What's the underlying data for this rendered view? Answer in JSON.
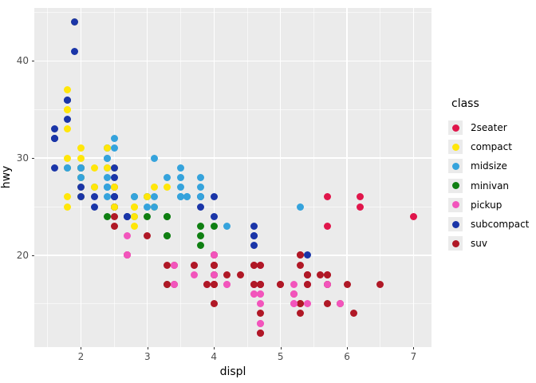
{
  "figure": {
    "x_axis_title": "displ",
    "y_axis_title": "hwy",
    "legend_title": "class"
  },
  "colors": {
    "panel_bg": "#EBEBEB",
    "grid": "#FFFFFF",
    "tick_label": "#4D4D4D",
    "axis_title": "#000000",
    "legend_key_bg": "#EBEBEB"
  },
  "chart_data": {
    "type": "scatter",
    "title": "",
    "xlabel": "displ",
    "ylabel": "hwy",
    "x_domain": [
      1.3,
      7.27
    ],
    "y_domain": [
      10.55,
      45.45
    ],
    "x_major_ticks": [
      2,
      3,
      4,
      5,
      6,
      7
    ],
    "x_minor_ticks": [
      1.5,
      2.5,
      3.5,
      4.5,
      5.5,
      6.5
    ],
    "y_major_ticks": [
      20,
      30,
      40
    ],
    "y_minor_ticks": [
      15,
      25,
      35,
      45
    ],
    "grid": true,
    "legend_position": "right",
    "classes": [
      {
        "name": "2seater",
        "color": "#E0164B"
      },
      {
        "name": "compact",
        "color": "#FFE60A"
      },
      {
        "name": "midsize",
        "color": "#35A3DC"
      },
      {
        "name": "minivan",
        "color": "#0F7F12"
      },
      {
        "name": "pickup",
        "color": "#F255BC"
      },
      {
        "name": "subcompact",
        "color": "#1A35A8"
      },
      {
        "name": "suv",
        "color": "#B01826"
      }
    ],
    "points": [
      [
        1.8,
        29,
        "compact"
      ],
      [
        1.8,
        29,
        "compact"
      ],
      [
        2.0,
        31,
        "compact"
      ],
      [
        2.0,
        30,
        "compact"
      ],
      [
        2.8,
        26,
        "compact"
      ],
      [
        2.8,
        26,
        "compact"
      ],
      [
        3.1,
        27,
        "compact"
      ],
      [
        1.8,
        26,
        "compact"
      ],
      [
        1.8,
        25,
        "compact"
      ],
      [
        2.0,
        28,
        "compact"
      ],
      [
        2.0,
        27,
        "compact"
      ],
      [
        2.8,
        25,
        "compact"
      ],
      [
        2.8,
        25,
        "compact"
      ],
      [
        3.1,
        25,
        "compact"
      ],
      [
        3.1,
        25,
        "compact"
      ],
      [
        2.8,
        24,
        "midsize"
      ],
      [
        3.1,
        25,
        "midsize"
      ],
      [
        4.2,
        23,
        "midsize"
      ],
      [
        5.3,
        20,
        "suv"
      ],
      [
        5.3,
        15,
        "suv"
      ],
      [
        5.3,
        20,
        "suv"
      ],
      [
        5.3,
        19,
        "suv"
      ],
      [
        5.7,
        17,
        "suv"
      ],
      [
        6.0,
        17,
        "suv"
      ],
      [
        5.7,
        26,
        "2seater"
      ],
      [
        5.7,
        23,
        "2seater"
      ],
      [
        6.2,
        26,
        "2seater"
      ],
      [
        6.2,
        25,
        "2seater"
      ],
      [
        7.0,
        24,
        "2seater"
      ],
      [
        5.3,
        14,
        "suv"
      ],
      [
        5.3,
        15,
        "suv"
      ],
      [
        5.7,
        17,
        "suv"
      ],
      [
        6.5,
        17,
        "suv"
      ],
      [
        2.4,
        27,
        "midsize"
      ],
      [
        2.4,
        30,
        "midsize"
      ],
      [
        3.1,
        26,
        "midsize"
      ],
      [
        3.5,
        29,
        "midsize"
      ],
      [
        3.6,
        26,
        "midsize"
      ],
      [
        2.4,
        24,
        "minivan"
      ],
      [
        3.0,
        24,
        "minivan"
      ],
      [
        3.3,
        22,
        "minivan"
      ],
      [
        3.3,
        22,
        "minivan"
      ],
      [
        3.3,
        24,
        "minivan"
      ],
      [
        3.3,
        24,
        "minivan"
      ],
      [
        3.3,
        17,
        "minivan"
      ],
      [
        3.8,
        22,
        "minivan"
      ],
      [
        3.8,
        21,
        "minivan"
      ],
      [
        3.8,
        23,
        "minivan"
      ],
      [
        4.0,
        23,
        "minivan"
      ],
      [
        4.0,
        18,
        "minivan"
      ],
      [
        3.7,
        19,
        "pickup"
      ],
      [
        3.7,
        18,
        "pickup"
      ],
      [
        3.9,
        17,
        "pickup"
      ],
      [
        3.9,
        17,
        "pickup"
      ],
      [
        4.7,
        19,
        "pickup"
      ],
      [
        4.7,
        19,
        "pickup"
      ],
      [
        4.7,
        12,
        "pickup"
      ],
      [
        5.2,
        17,
        "pickup"
      ],
      [
        5.2,
        15,
        "pickup"
      ],
      [
        3.9,
        17,
        "suv"
      ],
      [
        4.7,
        17,
        "suv"
      ],
      [
        4.7,
        12,
        "suv"
      ],
      [
        4.7,
        17,
        "suv"
      ],
      [
        5.2,
        16,
        "suv"
      ],
      [
        5.7,
        18,
        "suv"
      ],
      [
        5.9,
        15,
        "suv"
      ],
      [
        4.7,
        17,
        "pickup"
      ],
      [
        4.7,
        15,
        "pickup"
      ],
      [
        4.7,
        13,
        "pickup"
      ],
      [
        4.7,
        13,
        "pickup"
      ],
      [
        4.7,
        17,
        "pickup"
      ],
      [
        4.7,
        16,
        "pickup"
      ],
      [
        4.7,
        16,
        "pickup"
      ],
      [
        4.7,
        12,
        "pickup"
      ],
      [
        5.2,
        15,
        "pickup"
      ],
      [
        5.2,
        16,
        "pickup"
      ],
      [
        5.7,
        17,
        "pickup"
      ],
      [
        5.9,
        15,
        "pickup"
      ],
      [
        4.6,
        17,
        "suv"
      ],
      [
        5.4,
        17,
        "suv"
      ],
      [
        5.4,
        18,
        "suv"
      ],
      [
        4.0,
        17,
        "suv"
      ],
      [
        4.0,
        17,
        "suv"
      ],
      [
        4.0,
        19,
        "suv"
      ],
      [
        4.0,
        19,
        "suv"
      ],
      [
        4.6,
        19,
        "suv"
      ],
      [
        5.0,
        17,
        "suv"
      ],
      [
        4.2,
        17,
        "pickup"
      ],
      [
        4.2,
        17,
        "pickup"
      ],
      [
        4.6,
        16,
        "pickup"
      ],
      [
        4.6,
        16,
        "pickup"
      ],
      [
        4.6,
        17,
        "pickup"
      ],
      [
        5.4,
        15,
        "pickup"
      ],
      [
        5.4,
        17,
        "pickup"
      ],
      [
        3.8,
        26,
        "subcompact"
      ],
      [
        3.8,
        25,
        "subcompact"
      ],
      [
        4.0,
        26,
        "subcompact"
      ],
      [
        4.0,
        24,
        "subcompact"
      ],
      [
        4.6,
        21,
        "subcompact"
      ],
      [
        4.6,
        22,
        "subcompact"
      ],
      [
        4.6,
        23,
        "subcompact"
      ],
      [
        4.6,
        22,
        "subcompact"
      ],
      [
        5.4,
        20,
        "subcompact"
      ],
      [
        1.6,
        33,
        "subcompact"
      ],
      [
        1.6,
        32,
        "subcompact"
      ],
      [
        1.6,
        32,
        "subcompact"
      ],
      [
        1.6,
        29,
        "subcompact"
      ],
      [
        1.6,
        32,
        "subcompact"
      ],
      [
        1.8,
        34,
        "subcompact"
      ],
      [
        1.8,
        36,
        "subcompact"
      ],
      [
        1.8,
        36,
        "subcompact"
      ],
      [
        2.0,
        29,
        "subcompact"
      ],
      [
        2.4,
        26,
        "midsize"
      ],
      [
        2.4,
        27,
        "midsize"
      ],
      [
        2.4,
        30,
        "midsize"
      ],
      [
        2.4,
        31,
        "midsize"
      ],
      [
        2.5,
        26,
        "midsize"
      ],
      [
        2.5,
        26,
        "midsize"
      ],
      [
        2.0,
        26,
        "subcompact"
      ],
      [
        2.0,
        27,
        "subcompact"
      ],
      [
        2.0,
        28,
        "subcompact"
      ],
      [
        2.0,
        29,
        "subcompact"
      ],
      [
        2.7,
        24,
        "subcompact"
      ],
      [
        2.7,
        24,
        "subcompact"
      ],
      [
        2.7,
        24,
        "subcompact"
      ],
      [
        3.0,
        22,
        "suv"
      ],
      [
        3.7,
        19,
        "suv"
      ],
      [
        4.0,
        20,
        "suv"
      ],
      [
        4.7,
        17,
        "suv"
      ],
      [
        4.7,
        12,
        "suv"
      ],
      [
        4.7,
        19,
        "suv"
      ],
      [
        5.7,
        18,
        "suv"
      ],
      [
        6.1,
        14,
        "suv"
      ],
      [
        4.0,
        15,
        "suv"
      ],
      [
        4.2,
        18,
        "suv"
      ],
      [
        4.4,
        18,
        "suv"
      ],
      [
        4.6,
        17,
        "suv"
      ],
      [
        5.4,
        18,
        "suv"
      ],
      [
        5.4,
        17,
        "suv"
      ],
      [
        5.4,
        18,
        "suv"
      ],
      [
        4.0,
        17,
        "suv"
      ],
      [
        4.0,
        19,
        "suv"
      ],
      [
        4.6,
        19,
        "suv"
      ],
      [
        5.0,
        17,
        "suv"
      ],
      [
        2.4,
        29,
        "midsize"
      ],
      [
        2.4,
        27,
        "midsize"
      ],
      [
        2.5,
        31,
        "midsize"
      ],
      [
        2.5,
        32,
        "midsize"
      ],
      [
        3.5,
        27,
        "midsize"
      ],
      [
        3.5,
        26,
        "midsize"
      ],
      [
        3.0,
        26,
        "midsize"
      ],
      [
        3.0,
        25,
        "midsize"
      ],
      [
        3.5,
        26,
        "midsize"
      ],
      [
        3.3,
        19,
        "suv"
      ],
      [
        3.3,
        17,
        "suv"
      ],
      [
        4.0,
        20,
        "suv"
      ],
      [
        5.6,
        18,
        "suv"
      ],
      [
        3.1,
        30,
        "midsize"
      ],
      [
        3.3,
        28,
        "midsize"
      ],
      [
        3.8,
        28,
        "midsize"
      ],
      [
        3.8,
        27,
        "midsize"
      ],
      [
        3.8,
        26,
        "midsize"
      ],
      [
        5.3,
        25,
        "midsize"
      ],
      [
        2.5,
        24,
        "suv"
      ],
      [
        2.5,
        25,
        "suv"
      ],
      [
        2.5,
        27,
        "suv"
      ],
      [
        2.5,
        25,
        "suv"
      ],
      [
        2.5,
        26,
        "suv"
      ],
      [
        2.5,
        23,
        "suv"
      ],
      [
        2.2,
        26,
        "subcompact"
      ],
      [
        2.2,
        25,
        "subcompact"
      ],
      [
        2.5,
        26,
        "subcompact"
      ],
      [
        2.5,
        25,
        "subcompact"
      ],
      [
        2.5,
        26,
        "subcompact"
      ],
      [
        2.7,
        20,
        "suv"
      ],
      [
        2.7,
        20,
        "suv"
      ],
      [
        3.4,
        19,
        "suv"
      ],
      [
        3.4,
        17,
        "suv"
      ],
      [
        4.0,
        18,
        "suv"
      ],
      [
        4.7,
        17,
        "suv"
      ],
      [
        2.2,
        27,
        "midsize"
      ],
      [
        2.4,
        28,
        "midsize"
      ],
      [
        2.4,
        31,
        "midsize"
      ],
      [
        3.0,
        26,
        "midsize"
      ],
      [
        3.0,
        26,
        "midsize"
      ],
      [
        3.5,
        28,
        "midsize"
      ],
      [
        2.2,
        27,
        "compact"
      ],
      [
        2.2,
        29,
        "compact"
      ],
      [
        2.4,
        29,
        "compact"
      ],
      [
        2.4,
        31,
        "compact"
      ],
      [
        3.0,
        26,
        "compact"
      ],
      [
        3.3,
        27,
        "compact"
      ],
      [
        1.8,
        30,
        "compact"
      ],
      [
        1.8,
        33,
        "compact"
      ],
      [
        1.8,
        35,
        "compact"
      ],
      [
        1.8,
        37,
        "compact"
      ],
      [
        1.8,
        35,
        "compact"
      ],
      [
        4.7,
        14,
        "suv"
      ],
      [
        5.7,
        15,
        "suv"
      ],
      [
        2.7,
        20,
        "pickup"
      ],
      [
        2.7,
        20,
        "pickup"
      ],
      [
        2.7,
        22,
        "pickup"
      ],
      [
        3.4,
        17,
        "pickup"
      ],
      [
        3.4,
        19,
        "pickup"
      ],
      [
        4.0,
        18,
        "pickup"
      ],
      [
        4.0,
        20,
        "pickup"
      ],
      [
        2.0,
        29,
        "compact"
      ],
      [
        2.0,
        26,
        "compact"
      ],
      [
        2.0,
        29,
        "compact"
      ],
      [
        2.0,
        28,
        "compact"
      ],
      [
        2.8,
        24,
        "compact"
      ],
      [
        1.9,
        44,
        "compact"
      ],
      [
        2.0,
        29,
        "compact"
      ],
      [
        2.0,
        26,
        "compact"
      ],
      [
        2.0,
        29,
        "compact"
      ],
      [
        2.0,
        29,
        "compact"
      ],
      [
        2.5,
        29,
        "compact"
      ],
      [
        2.5,
        27,
        "compact"
      ],
      [
        2.5,
        25,
        "compact"
      ],
      [
        2.8,
        23,
        "compact"
      ],
      [
        1.9,
        44,
        "subcompact"
      ],
      [
        1.9,
        41,
        "subcompact"
      ],
      [
        2.0,
        29,
        "subcompact"
      ],
      [
        2.0,
        26,
        "subcompact"
      ],
      [
        2.5,
        28,
        "subcompact"
      ],
      [
        2.5,
        29,
        "subcompact"
      ],
      [
        1.8,
        29,
        "midsize"
      ],
      [
        1.8,
        29,
        "midsize"
      ],
      [
        2.0,
        28,
        "midsize"
      ],
      [
        2.0,
        29,
        "midsize"
      ],
      [
        2.8,
        26,
        "midsize"
      ],
      [
        2.8,
        26,
        "midsize"
      ],
      [
        3.6,
        26,
        "midsize"
      ]
    ]
  }
}
